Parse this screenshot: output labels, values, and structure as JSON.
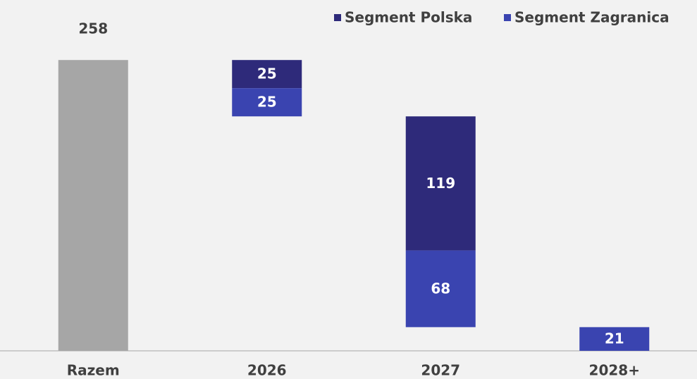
{
  "chart_data": {
    "type": "waterfall",
    "categories": [
      "Razem",
      "2026",
      "2027",
      "2028+"
    ],
    "totals": [
      258,
      null,
      null,
      null
    ],
    "total_color": "#a6a6a6",
    "series": [
      {
        "name": "Segment Polska",
        "color": "#2e2a7a",
        "values": [
          null,
          25,
          119,
          null
        ]
      },
      {
        "name": "Segment Zagranica",
        "color": "#3a44b0",
        "values": [
          null,
          25,
          68,
          21
        ]
      }
    ],
    "ylim": [
      0,
      300
    ],
    "legend": "top-right"
  }
}
